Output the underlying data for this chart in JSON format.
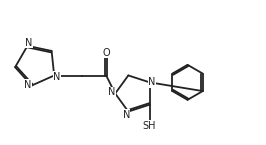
{
  "bg_color": "#ffffff",
  "line_color": "#222222",
  "line_width": 1.3,
  "font_size": 7.0,
  "fig_w": 2.66,
  "fig_h": 1.45,
  "xlim": [
    0,
    2.66
  ],
  "ylim": [
    0,
    1.45
  ]
}
